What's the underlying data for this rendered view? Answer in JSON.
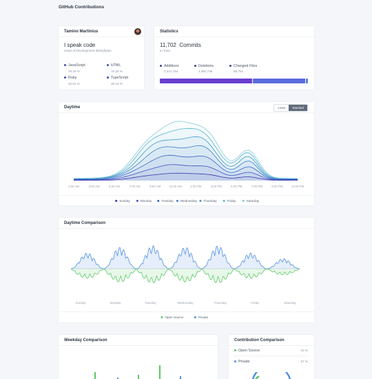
{
  "app": {
    "title": "GitHub Contributions"
  },
  "profile": {
    "name": "Tamino Martinius",
    "headline": "I speak code",
    "role": "Head of Development @shyftplan",
    "languages": [
      {
        "name": "JavaScript",
        "pct": "78.39 %",
        "color": "#3b4aa8"
      },
      {
        "name": "HTML",
        "pct": "76.26 %",
        "color": "#3b4aa8"
      },
      {
        "name": "Ruby",
        "pct": "40.62 %",
        "color": "#3b4aa8"
      },
      {
        "name": "TypeScript",
        "pct": "39.18 %",
        "color": "#3b4aa8"
      }
    ]
  },
  "statistics": {
    "title": "Statistics",
    "commits_value": "11,702",
    "commits_label": "Commits",
    "commits_sub": "In Total",
    "items": [
      {
        "label": "Additions",
        "value": "3,441,764",
        "color": "#3b3f9f"
      },
      {
        "label": "Deletions",
        "value": "1,950,736",
        "color": "#3b3f9f"
      },
      {
        "label": "Changed Files",
        "value": "65,754",
        "color": "#3b3f9f"
      }
    ],
    "bar": [
      {
        "fraction": 0.63,
        "color": "#6a3fd1"
      },
      {
        "fraction": 0.355,
        "color": "#5b6bdc"
      },
      {
        "fraction": 0.015,
        "color": "#4f7fe0"
      }
    ]
  },
  "daytime": {
    "title": "Daytime",
    "toggle_lines": "Lines",
    "toggle_stacked": "Stacked",
    "x_ticks": [
      "1:00 AM",
      "3:00 AM",
      "5:00 AM",
      "7:00 AM",
      "9:00 AM",
      "11:00 AM",
      "1:00 PM",
      "3:00 PM",
      "5:00 PM",
      "7:00 PM",
      "9:00 PM",
      "11:00 PM"
    ],
    "legend": [
      {
        "name": "Sunday",
        "color": "#3d2fa8"
      },
      {
        "name": "Monday",
        "color": "#3f4cc0"
      },
      {
        "name": "Tuesday",
        "color": "#3a62c6"
      },
      {
        "name": "Wednesday",
        "color": "#3a7ec9"
      },
      {
        "name": "Thursday",
        "color": "#3e98cc"
      },
      {
        "name": "Friday",
        "color": "#56b2cf"
      },
      {
        "name": "Saturday",
        "color": "#86cad8"
      }
    ]
  },
  "comparison": {
    "title": "Daytime Comparison",
    "x_ticks": [
      "Sunday",
      "Monday",
      "Tuesday",
      "Wednesday",
      "Thursday",
      "Friday",
      "Saturday"
    ],
    "legend": [
      {
        "name": "Open Source",
        "color": "#5cc765"
      },
      {
        "name": "Private",
        "color": "#4f8ee0"
      }
    ]
  },
  "weekday": {
    "title": "Weekday Comparison"
  },
  "contribution": {
    "title": "Contribution Comparison",
    "items": [
      {
        "label": "Open Source",
        "pct": "33 %",
        "color": "#5cc765"
      },
      {
        "label": "Private",
        "pct": "67 %",
        "color": "#4f8ee0"
      }
    ]
  }
}
